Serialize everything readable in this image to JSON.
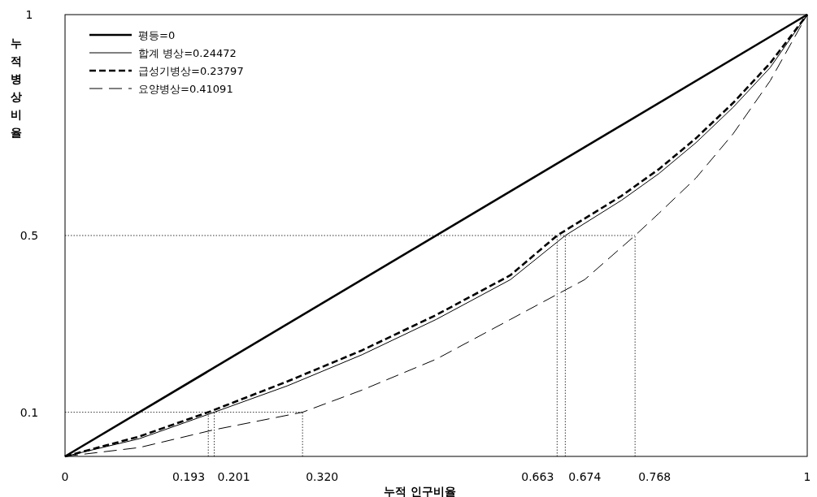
{
  "chart_data": {
    "type": "line",
    "xlabel": "누적 인구비율",
    "ylabel": "누적병상비율",
    "xlim": [
      0,
      1
    ],
    "ylim": [
      0,
      1
    ],
    "xticks": [
      0,
      1
    ],
    "yticks": [
      0.1,
      0.5,
      1
    ],
    "grid": false,
    "legend": "top left",
    "marker": "none",
    "series": [
      {
        "name": "평등=0",
        "color": "#000000",
        "line_style": "solid",
        "x": [
          0,
          1
        ],
        "values": [
          0,
          1
        ]
      },
      {
        "name": "합계 병상=0.24472",
        "color": "#000000",
        "line_style": "solid",
        "x": [
          0,
          0.1,
          0.201,
          0.3,
          0.4,
          0.5,
          0.6,
          0.674,
          0.75,
          0.8,
          0.85,
          0.9,
          0.95,
          1
        ],
        "values": [
          0,
          0.04,
          0.1,
          0.16,
          0.23,
          0.31,
          0.4,
          0.5,
          0.58,
          0.64,
          0.71,
          0.79,
          0.88,
          1
        ]
      },
      {
        "name": "급성기병상=0.23797",
        "color": "#000000",
        "line_style": "dashed",
        "x": [
          0,
          0.1,
          0.193,
          0.3,
          0.4,
          0.5,
          0.6,
          0.663,
          0.75,
          0.8,
          0.85,
          0.9,
          0.95,
          1
        ],
        "values": [
          0,
          0.045,
          0.1,
          0.17,
          0.24,
          0.32,
          0.41,
          0.5,
          0.59,
          0.65,
          0.72,
          0.8,
          0.89,
          1
        ]
      },
      {
        "name": "요양병상=0.41091",
        "color": "#000000",
        "line_style": "dashed",
        "x": [
          0,
          0.1,
          0.2,
          0.32,
          0.4,
          0.5,
          0.6,
          0.7,
          0.768,
          0.8,
          0.85,
          0.9,
          0.95,
          1
        ],
        "values": [
          0,
          0.02,
          0.06,
          0.1,
          0.15,
          0.22,
          0.31,
          0.4,
          0.5,
          0.55,
          0.63,
          0.73,
          0.85,
          1
        ]
      }
    ],
    "ref_lines": [
      {
        "axis": "y",
        "value": 0.1,
        "line_style": "dotted"
      },
      {
        "axis": "y",
        "value": 0.5,
        "line_style": "dotted"
      },
      {
        "axis": "x",
        "value": 0.193,
        "line_style": "dotted",
        "label": "0.193"
      },
      {
        "axis": "x",
        "value": 0.201,
        "line_style": "dotted",
        "label": "0.201"
      },
      {
        "axis": "x",
        "value": 0.32,
        "line_style": "dotted",
        "label": "0.320"
      },
      {
        "axis": "x",
        "value": 0.663,
        "line_style": "dotted",
        "label": "0.663"
      },
      {
        "axis": "x",
        "value": 0.674,
        "line_style": "dotted",
        "label": "0.674"
      },
      {
        "axis": "x",
        "value": 0.768,
        "line_style": "dotted",
        "label": "0.768"
      }
    ]
  }
}
